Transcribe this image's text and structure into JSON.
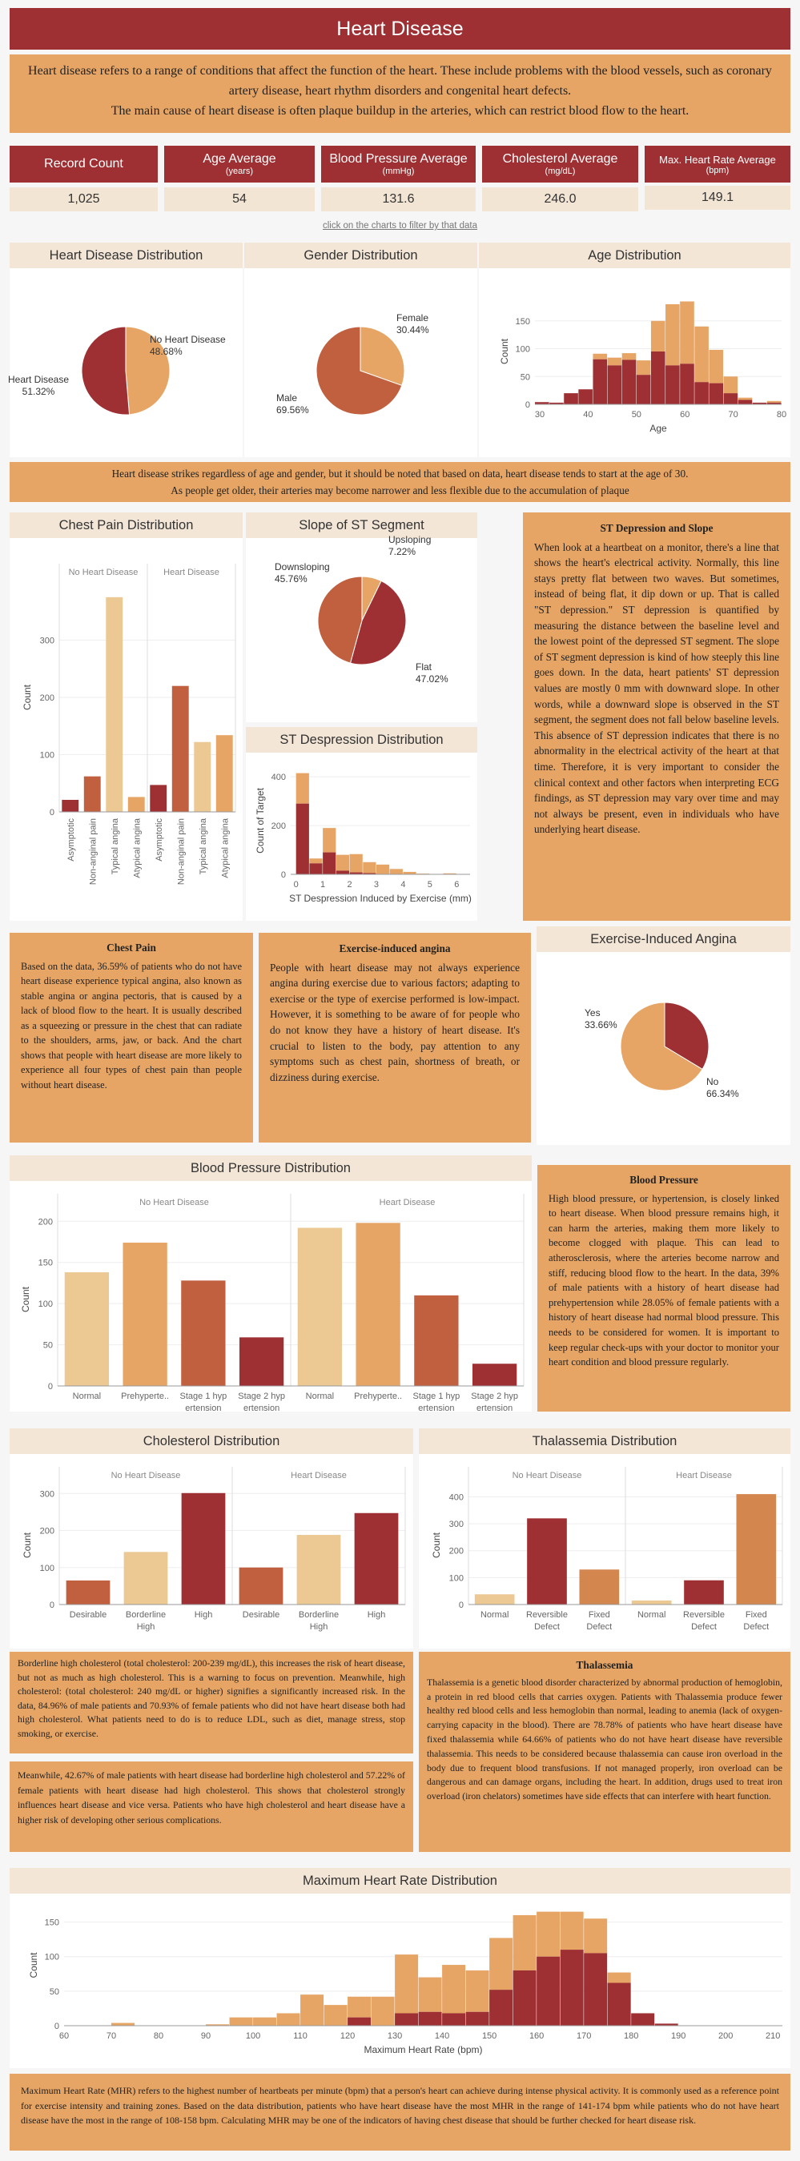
{
  "title": "Heart Disease",
  "intro": {
    "line1": "Heart disease refers to a range of conditions that affect the function of the heart. These include problems with the blood vessels, such as coronary artery disease, heart rhythm disorders and congenital heart defects.",
    "line2": "The main cause of heart disease is often plaque buildup in the arteries, which can restrict blood flow to the heart."
  },
  "kpis": [
    {
      "label": "Record Count",
      "unit": "",
      "value": "1,025"
    },
    {
      "label": "Age Average",
      "unit": "(years)",
      "value": "54"
    },
    {
      "label": "Blood Pressure Average",
      "unit": "(mmHg)",
      "value": "131.6"
    },
    {
      "label": "Cholesterol Average",
      "unit": "(mg/dL)",
      "value": "246.0"
    },
    {
      "label": "Max. Heart Rate Average",
      "unit": "(bpm)",
      "value": "149.1"
    }
  ],
  "hint": "click on the charts to filter by that data",
  "colors": {
    "dark": "#9e3033",
    "mid": "#c1603f",
    "orange": "#d4864f",
    "light": "#e6a565",
    "pale": "#ecc893",
    "accent": "#9e3033"
  },
  "banner": {
    "line1": "Heart disease strikes regardless of age and gender, but it should be noted that based on data, heart disease tends to start at the age of 30.",
    "line2": "As people get older, their arteries may become narrower and less flexible due to the accumulation of plaque"
  },
  "notes": {
    "st": {
      "title": "ST Depression and Slope",
      "text": "When look at a heartbeat on a monitor, there's a line that shows the heart's electrical activity. Normally, this line stays pretty flat between two waves. But sometimes, instead of being flat, it dip down or up. That is called \"ST depression.\" ST depression is quantified by measuring the distance between the baseline level and the lowest point of the depressed ST segment. The slope of ST segment depression is kind of how steeply this line goes down. In the data, heart patients' ST depression values are mostly 0 mm with downward slope. In other words, while a downward slope is observed in the ST segment, the segment does not fall below baseline levels. This absence of ST depression indicates that there is no abnormality in the electrical activity of the heart at that time. Therefore, it is very important to consider the clinical context and other factors when interpreting ECG findings, as ST depression may vary over time and may not always be present, even in individuals who have underlying heart disease."
    },
    "chest": {
      "title": "Chest Pain",
      "text": "Based on the data, 36.59% of patients who do not have heart disease experience typical angina, also known as stable angina or angina pectoris, that is caused by a lack of blood flow to the heart. It is usually described as a squeezing or pressure in the chest that can radiate to the shoulders, arms, jaw, or back. And the chart shows that people with heart disease are more likely to experience all four types of chest pain than people without heart disease."
    },
    "exang": {
      "title": "Exercise-induced angina",
      "text": "People with heart disease may not always experience angina during exercise due to various factors; adapting to exercise or the type of exercise performed is low-impact. However, it is something to be aware of for people who do not know they have a history of heart disease. It's crucial to listen to the body, pay attention to any symptoms such as chest pain, shortness of breath, or dizziness during exercise."
    },
    "bp": {
      "title": "Blood Pressure",
      "text": "High blood pressure, or hypertension, is closely linked to heart disease. When blood pressure remains high, it can harm the arteries, making them more likely to become clogged with plaque. This can lead to atherosclerosis, where the arteries become narrow and stiff, reducing blood flow to the heart. In the data, 39% of male patients with a history of heart disease had prehypertension while 28.05% of female patients with a history of heart disease had normal blood pressure. This needs to be considered for women. It is important to keep regular check-ups with your doctor to monitor your heart condition and blood pressure regularly."
    },
    "chol1": {
      "text": "Borderline high cholesterol (total cholesterol: 200-239 mg/dL), this increases the risk of heart disease, but not as much as high cholesterol. This is a warning to focus on prevention. Meanwhile, high cholesterol: (total cholesterol: 240 mg/dL or higher) signifies a significantly increased risk. In the data, 84.96% of male patients and 70.93% of female patients who did not have heart disease both had high cholesterol. What patients need to do is to reduce LDL, such as diet, manage stress, stop smoking, or exercise."
    },
    "chol2": {
      "text": "Meanwhile, 42.67% of male patients with heart disease had borderline high cholesterol and 57.22% of female patients with heart disease had high cholesterol. This shows that cholesterol strongly influences heart disease and vice versa. Patients who have high cholesterol and heart disease have a higher risk of developing other serious complications."
    },
    "thal": {
      "title": "Thalassemia",
      "text": "Thalassemia is a genetic blood disorder characterized by abnormal production of hemoglobin, a protein in red blood cells that carries oxygen. Patients with Thalassemia produce fewer healthy red blood cells and less hemoglobin than normal, leading to anemia (lack of oxygen-carrying capacity in the blood). There are 78.78% of patients who have heart disease have fixed thalassemia while 64.66% of patients who do not have heart disease have reversible thalassemia. This needs to be considered because thalassemia can cause iron overload in the body due to frequent blood transfusions. If not managed properly, iron overload can be dangerous and can damage organs, including the heart. In addition, drugs used to treat iron overload (iron chelators) sometimes have side effects that can interfere with heart function."
    },
    "mhr": {
      "text": "Maximum Heart Rate (MHR) refers to the highest number of heartbeats per minute (bpm) that a person's heart can achieve during intense physical activity. It is commonly used as a reference point for exercise intensity and training zones. Based on the data distribution, patients who have heart disease have the most MHR in the range of 141-174 bpm while patients who do not have heart disease have the most in the range of 108-158 bpm. Calculating MHR may be one of the indicators of having chest disease that should be further checked for heart disease risk."
    }
  },
  "chart_data": [
    {
      "id": "hd",
      "type": "pie",
      "title": "Heart Disease Distribution",
      "labels": [
        "No Heart Disease",
        "Heart Disease"
      ],
      "values": [
        48.68,
        51.32
      ],
      "value_labels": [
        "48.68%",
        "51.32%"
      ]
    },
    {
      "id": "gender",
      "type": "pie",
      "title": "Gender Distribution",
      "labels": [
        "Female",
        "Male"
      ],
      "values": [
        30.44,
        69.56
      ],
      "value_labels": [
        "30.44%",
        "69.56%"
      ]
    },
    {
      "id": "age",
      "type": "bar",
      "title": "Age Distribution",
      "xlabel": "Age",
      "ylabel": "Count",
      "x_bins": [
        29,
        32,
        35,
        38,
        41,
        44,
        47,
        50,
        53,
        56,
        59,
        62,
        65,
        68,
        71,
        74,
        77
      ],
      "series": [
        {
          "name": "Heart Disease",
          "values": [
            4,
            3,
            20,
            27,
            81,
            70,
            80,
            53,
            95,
            70,
            73,
            40,
            38,
            20,
            8,
            3,
            3
          ]
        },
        {
          "name": "No Heart Disease",
          "values": [
            0,
            0,
            0,
            0,
            10,
            14,
            12,
            26,
            55,
            110,
            112,
            100,
            60,
            30,
            4,
            0,
            3
          ]
        }
      ],
      "stacked": true,
      "xticks": [
        30,
        40,
        50,
        60,
        70,
        80
      ],
      "yticks": [
        0,
        50,
        100,
        150
      ],
      "xlim": [
        29,
        80
      ],
      "ylim": [
        0,
        190
      ]
    },
    {
      "id": "cp",
      "type": "bar",
      "title": "Chest Pain Distribution",
      "ylabel": "Count",
      "groups": [
        "No Heart Disease",
        "Heart Disease"
      ],
      "categories": [
        "Asymptotic",
        "Non-anginal pain",
        "Typical angina",
        "Atypical angina"
      ],
      "values": [
        [
          21,
          62,
          375,
          26
        ],
        [
          47,
          220,
          122,
          134
        ]
      ],
      "yticks": [
        0,
        100,
        200,
        300
      ],
      "ylim": [
        0,
        400
      ]
    },
    {
      "id": "slope",
      "type": "pie",
      "title": "Slope of ST Segment",
      "labels": [
        "Upsloping",
        "Flat",
        "Downsloping"
      ],
      "values": [
        7.22,
        47.02,
        45.76
      ],
      "value_labels": [
        "7.22%",
        "47.02%",
        "45.76%"
      ]
    },
    {
      "id": "oldpeak",
      "type": "bar",
      "title": "ST Despression Distribution",
      "xlabel": "ST Despression Induced by Exercise (mm)",
      "ylabel": "Count of Target",
      "x_bins": [
        0,
        0.5,
        1,
        1.5,
        2,
        2.5,
        3,
        3.5,
        4,
        4.5,
        5,
        5.5
      ],
      "series": [
        {
          "name": "Heart Disease",
          "values": [
            290,
            45,
            90,
            15,
            8,
            5,
            0,
            0,
            0,
            0,
            0,
            0
          ]
        },
        {
          "name": "No Heart Disease",
          "values": [
            125,
            20,
            100,
            65,
            75,
            45,
            40,
            22,
            10,
            3,
            0,
            4
          ]
        }
      ],
      "stacked": true,
      "xticks": [
        0,
        1,
        2,
        3,
        4,
        5,
        6
      ],
      "yticks": [
        0,
        200,
        400
      ],
      "xlim": [
        -0.2,
        6.5
      ],
      "ylim": [
        0,
        440
      ]
    },
    {
      "id": "exang",
      "type": "pie",
      "title": "Exercise-Induced Angina",
      "labels": [
        "Yes",
        "No"
      ],
      "values": [
        33.66,
        66.34
      ],
      "value_labels": [
        "33.66%",
        "66.34%"
      ]
    },
    {
      "id": "bp",
      "type": "bar",
      "title": "Blood Pressure Distribution",
      "ylabel": "Count",
      "groups": [
        "No Heart Disease",
        "Heart Disease"
      ],
      "categories": [
        "Normal",
        "Prehypertension",
        "Stage 1 hypertension",
        "Stage 2 hypertension"
      ],
      "tick_labels": [
        [
          "Normal"
        ],
        [
          "Prehyperte.."
        ],
        [
          "Stage 1 hyp",
          "ertension"
        ],
        [
          "Stage 2 hyp",
          "ertension"
        ]
      ],
      "values": [
        [
          138,
          174,
          128,
          59
        ],
        [
          192,
          198,
          110,
          27
        ]
      ],
      "yticks": [
        0,
        50,
        100,
        150,
        200
      ],
      "ylim": [
        0,
        210
      ]
    },
    {
      "id": "chol",
      "type": "bar",
      "title": "Cholesterol Distribution",
      "ylabel": "Count",
      "groups": [
        "No Heart Disease",
        "Heart Disease"
      ],
      "categories": [
        "Desirable",
        "Borderline High",
        "High"
      ],
      "tick_labels": [
        [
          "Desirable"
        ],
        [
          "Borderline",
          "High"
        ],
        [
          "High"
        ]
      ],
      "values": [
        [
          65,
          142,
          301
        ],
        [
          100,
          188,
          247
        ]
      ],
      "yticks": [
        0,
        100,
        200,
        300
      ],
      "ylim": [
        0,
        320
      ]
    },
    {
      "id": "thal",
      "type": "bar",
      "title": "Thalassemia Distribution",
      "ylabel": "Count",
      "groups": [
        "No Heart Disease",
        "Heart Disease"
      ],
      "categories": [
        "Normal",
        "Reversible Defect",
        "Fixed Defect"
      ],
      "tick_labels": [
        [
          "Normal"
        ],
        [
          "Reversible",
          "Defect"
        ],
        [
          "Fixed",
          "Defect"
        ]
      ],
      "values": [
        [
          38,
          320,
          130
        ],
        [
          15,
          90,
          410
        ]
      ],
      "yticks": [
        0,
        100,
        200,
        300,
        400
      ],
      "ylim": [
        0,
        440
      ]
    },
    {
      "id": "mhr",
      "type": "bar",
      "title": "Maximum Heart Rate Distribution",
      "xlabel": "Maximum Heart Rate (bpm)",
      "ylabel": "Count",
      "x_bins": [
        65,
        70,
        75,
        80,
        85,
        90,
        95,
        100,
        105,
        110,
        115,
        120,
        125,
        130,
        135,
        140,
        145,
        150,
        155,
        160,
        165,
        170,
        175,
        180,
        185,
        190,
        195,
        200,
        205
      ],
      "series": [
        {
          "name": "Heart Disease",
          "values": [
            0,
            0,
            0,
            0,
            0,
            0,
            0,
            0,
            0,
            0,
            0,
            12,
            0,
            18,
            20,
            18,
            20,
            52,
            80,
            100,
            110,
            105,
            62,
            18,
            3,
            0,
            0,
            0,
            0
          ]
        },
        {
          "name": "No Heart Disease",
          "values": [
            0,
            4,
            0,
            0,
            0,
            2,
            12,
            12,
            18,
            45,
            30,
            30,
            42,
            85,
            50,
            70,
            60,
            75,
            80,
            65,
            55,
            50,
            15,
            0,
            0,
            0,
            0,
            0,
            0
          ]
        }
      ],
      "stacked": true,
      "xticks": [
        60,
        70,
        80,
        90,
        100,
        110,
        120,
        130,
        140,
        150,
        160,
        170,
        180,
        190,
        200,
        210
      ],
      "yticks": [
        0,
        50,
        100,
        150
      ],
      "xlim": [
        60,
        212
      ],
      "ylim": [
        0,
        175
      ]
    }
  ]
}
